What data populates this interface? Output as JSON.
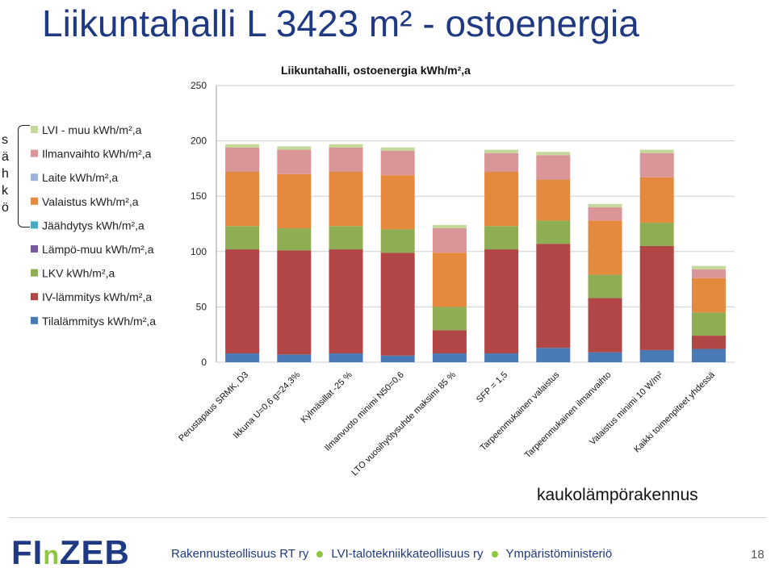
{
  "slide": {
    "title": "Liikuntahalli L 3423 m² - ostoenergia",
    "side_letters": [
      "s",
      "ä",
      "h",
      "k",
      "ö"
    ],
    "subtitle_right": "kaukolämpörakennus",
    "footer": {
      "logo_fi": "FI",
      "logo_n": "n",
      "logo_zeb": "ZEB",
      "org1": "Rakennusteollisuus RT ry",
      "org2": "LVI-talotekniikkateollisuus ry",
      "org3": "Ympäristöministeriö",
      "page_number": "18",
      "accent_color": "#8dc63f",
      "brand_color": "#1f3a82"
    }
  },
  "chart_data": {
    "type": "bar",
    "stacked": true,
    "title": "Liikuntahalli, ostoenergia kWh/m²,a",
    "xlabel": "",
    "ylabel": "",
    "ylim": [
      0,
      250
    ],
    "yticks": [
      0,
      50,
      100,
      150,
      200,
      250
    ],
    "grid": true,
    "legend_position": "left",
    "categories": [
      "Perustapaus SRMK, D3",
      "Ikkuna U=0,6 g=24,3%",
      "Kylmäsillat -25 %",
      "Ilmanvuoto minimi N50=0,6",
      "LTO vuosihyötysuhde maksimi 85 %",
      "SFP = 1,5",
      "Tarpeenmukainen valaistus",
      "Tarpeenmukainen ilmanvaihto",
      "Valaistus minimi 10 W/m²",
      "Kaikki toimenpiteet yhdessä"
    ],
    "series": [
      {
        "name": "Tilalämmitys kWh/m²,a",
        "color": "#4a7ab5",
        "values": [
          8,
          7,
          8,
          6,
          8,
          8,
          13,
          9,
          11,
          12
        ]
      },
      {
        "name": "IV-lämmitys kWh/m²,a",
        "color": "#b04645",
        "values": [
          94,
          94,
          94,
          93,
          21,
          94,
          94,
          49,
          94,
          12
        ]
      },
      {
        "name": "LKV kWh/m²,a",
        "color": "#8fad52",
        "values": [
          21,
          20,
          21,
          21,
          21,
          21,
          21,
          21,
          21,
          21
        ]
      },
      {
        "name": "Lämpö-muu kWh/m²,a",
        "color": "#775a9c",
        "values": [
          0,
          0,
          0,
          0,
          0,
          0,
          0,
          0,
          0,
          0
        ]
      },
      {
        "name": "Jäähdytys kWh/m²,a",
        "color": "#4aaac3",
        "values": [
          0,
          0,
          0,
          0,
          0,
          0,
          0,
          0,
          0,
          0
        ]
      },
      {
        "name": "Valaistus kWh/m²,a",
        "color": "#e48a3f",
        "values": [
          49,
          49,
          49,
          49,
          49,
          49,
          37,
          49,
          41,
          31
        ]
      },
      {
        "name": "Laite kWh/m²,a",
        "color": "#9db4da",
        "values": [
          0,
          0,
          0,
          0,
          0,
          0,
          0,
          0,
          0,
          0
        ]
      },
      {
        "name": "Ilmanvaihto kWh/m²,a",
        "color": "#d99597",
        "values": [
          22,
          22,
          22,
          22,
          22,
          17,
          22,
          12,
          22,
          8
        ]
      },
      {
        "name": "LVI - muu kWh/m²,a",
        "color": "#c4d89a",
        "values": [
          3,
          3,
          3,
          3,
          3,
          3,
          3,
          3,
          3,
          3
        ]
      }
    ]
  }
}
